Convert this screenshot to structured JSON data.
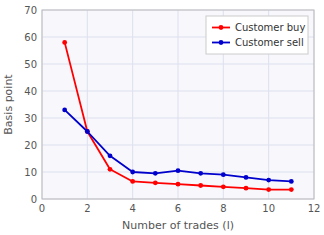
{
  "chart_data": {
    "type": "line",
    "x": [
      1,
      2,
      3,
      4,
      5,
      6,
      7,
      8,
      9,
      10,
      11
    ],
    "series": [
      {
        "name": "Customer buy",
        "color": "#ff0000",
        "marker": "circle",
        "values": [
          58,
          25,
          11,
          6.5,
          6,
          5.5,
          5,
          4.5,
          4,
          3.5,
          3.5
        ]
      },
      {
        "name": "Customer sell",
        "color": "#0000cc",
        "marker": "circle",
        "values": [
          33,
          25,
          16,
          10,
          9.5,
          10.5,
          9.5,
          9,
          8,
          7,
          6.5
        ]
      }
    ],
    "xlabel": "Number of trades (l)",
    "ylabel": "Basis point",
    "xlim": [
      0,
      12
    ],
    "ylim": [
      0,
      70
    ],
    "xticks": [
      0,
      2,
      4,
      6,
      8,
      10,
      12
    ],
    "yticks": [
      0,
      10,
      20,
      30,
      40,
      50,
      60,
      70
    ],
    "grid": true,
    "legend": "upper-right"
  }
}
